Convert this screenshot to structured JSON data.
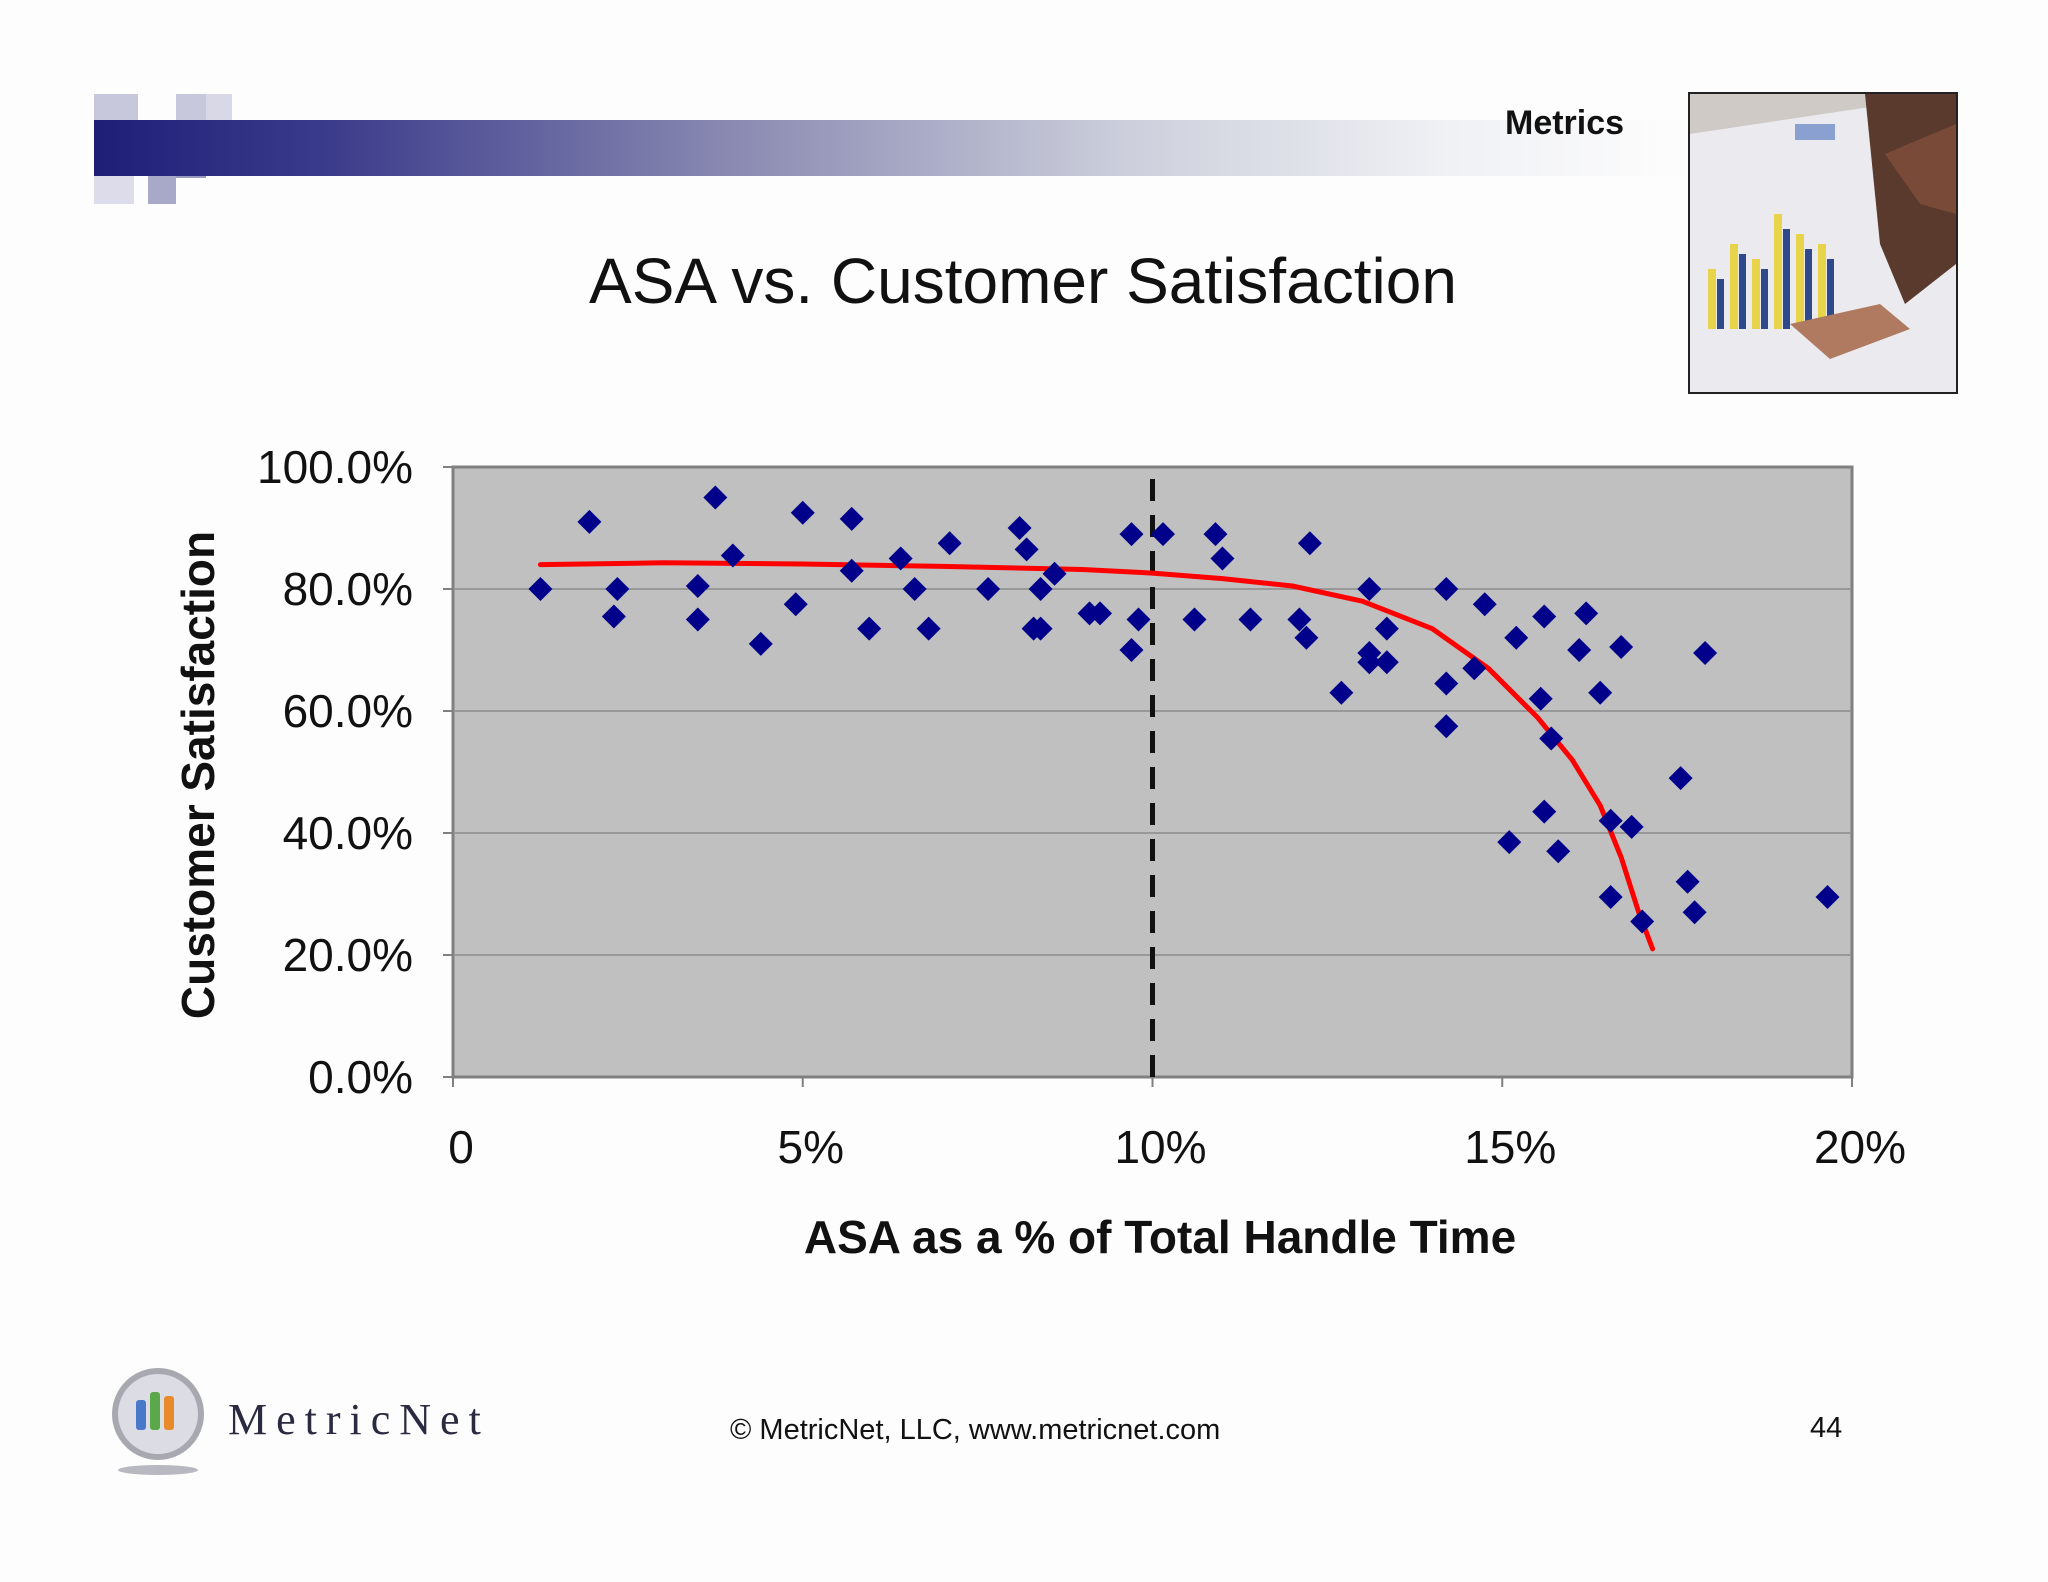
{
  "header": {
    "section_label": "Metrics",
    "title": "ASA vs. Customer Satisfaction"
  },
  "colors": {
    "accent_navy": "#1e1e78",
    "plot_background": "#c0c0c0",
    "marker": "#00008b",
    "trend_line": "#ff0000"
  },
  "chart_data": {
    "type": "scatter",
    "title": "",
    "xlabel": "ASA as a % of Total Handle Time",
    "ylabel": "Customer Satisfaction",
    "xlim": [
      0,
      0.2
    ],
    "ylim": [
      0,
      1.0
    ],
    "x_ticks": [
      {
        "value": 0,
        "label": "0"
      },
      {
        "value": 0.05,
        "label": "5%"
      },
      {
        "value": 0.1,
        "label": "10%"
      },
      {
        "value": 0.15,
        "label": "15%"
      },
      {
        "value": 0.2,
        "label": "20%"
      }
    ],
    "y_ticks": [
      {
        "value": 0,
        "label": "0.0%"
      },
      {
        "value": 0.2,
        "label": "20.0%"
      },
      {
        "value": 0.4,
        "label": "40.0%"
      },
      {
        "value": 0.6,
        "label": "60.0%"
      },
      {
        "value": 0.8,
        "label": "80.0%"
      },
      {
        "value": 1.0,
        "label": "100.0%"
      }
    ],
    "grid": "horizontal",
    "reference_line": {
      "x": 0.1,
      "style": "dashed"
    },
    "points": [
      [
        0.0125,
        0.8
      ],
      [
        0.0195,
        0.91
      ],
      [
        0.0235,
        0.8
      ],
      [
        0.023,
        0.755
      ],
      [
        0.035,
        0.805
      ],
      [
        0.035,
        0.75
      ],
      [
        0.0375,
        0.95
      ],
      [
        0.04,
        0.855
      ],
      [
        0.044,
        0.71
      ],
      [
        0.049,
        0.775
      ],
      [
        0.05,
        0.925
      ],
      [
        0.057,
        0.915
      ],
      [
        0.057,
        0.83
      ],
      [
        0.0595,
        0.735
      ],
      [
        0.064,
        0.85
      ],
      [
        0.066,
        0.8
      ],
      [
        0.068,
        0.735
      ],
      [
        0.071,
        0.875
      ],
      [
        0.0765,
        0.8
      ],
      [
        0.081,
        0.9
      ],
      [
        0.082,
        0.865
      ],
      [
        0.083,
        0.735
      ],
      [
        0.084,
        0.8
      ],
      [
        0.084,
        0.735
      ],
      [
        0.086,
        0.825
      ],
      [
        0.091,
        0.76
      ],
      [
        0.0925,
        0.76
      ],
      [
        0.097,
        0.89
      ],
      [
        0.097,
        0.7
      ],
      [
        0.098,
        0.75
      ],
      [
        0.1015,
        0.89
      ],
      [
        0.106,
        0.75
      ],
      [
        0.109,
        0.89
      ],
      [
        0.11,
        0.85
      ],
      [
        0.114,
        0.75
      ],
      [
        0.121,
        0.75
      ],
      [
        0.122,
        0.72
      ],
      [
        0.1225,
        0.875
      ],
      [
        0.127,
        0.63
      ],
      [
        0.131,
        0.8
      ],
      [
        0.131,
        0.695
      ],
      [
        0.131,
        0.68
      ],
      [
        0.1335,
        0.735
      ],
      [
        0.1335,
        0.68
      ],
      [
        0.142,
        0.8
      ],
      [
        0.142,
        0.645
      ],
      [
        0.142,
        0.575
      ],
      [
        0.146,
        0.67
      ],
      [
        0.1475,
        0.775
      ],
      [
        0.151,
        0.385
      ],
      [
        0.152,
        0.72
      ],
      [
        0.1555,
        0.62
      ],
      [
        0.156,
        0.755
      ],
      [
        0.156,
        0.435
      ],
      [
        0.157,
        0.555
      ],
      [
        0.158,
        0.37
      ],
      [
        0.161,
        0.7
      ],
      [
        0.162,
        0.76
      ],
      [
        0.164,
        0.63
      ],
      [
        0.1655,
        0.42
      ],
      [
        0.1655,
        0.295
      ],
      [
        0.167,
        0.705
      ],
      [
        0.1685,
        0.41
      ],
      [
        0.17,
        0.255
      ],
      [
        0.1755,
        0.49
      ],
      [
        0.1765,
        0.32
      ],
      [
        0.1775,
        0.27
      ],
      [
        0.179,
        0.695
      ],
      [
        0.1965,
        0.295
      ]
    ],
    "trend_line": [
      [
        0.0125,
        0.84
      ],
      [
        0.03,
        0.843
      ],
      [
        0.05,
        0.841
      ],
      [
        0.07,
        0.837
      ],
      [
        0.09,
        0.832
      ],
      [
        0.1,
        0.826
      ],
      [
        0.11,
        0.817
      ],
      [
        0.12,
        0.805
      ],
      [
        0.13,
        0.78
      ],
      [
        0.14,
        0.735
      ],
      [
        0.148,
        0.67
      ],
      [
        0.155,
        0.59
      ],
      [
        0.16,
        0.52
      ],
      [
        0.164,
        0.445
      ],
      [
        0.167,
        0.36
      ],
      [
        0.1695,
        0.27
      ],
      [
        0.1715,
        0.21
      ]
    ]
  },
  "footer": {
    "logo_text": "MetricNet",
    "copyright": "© MetricNet, LLC, www.metricnet.com",
    "page_number": "44"
  }
}
